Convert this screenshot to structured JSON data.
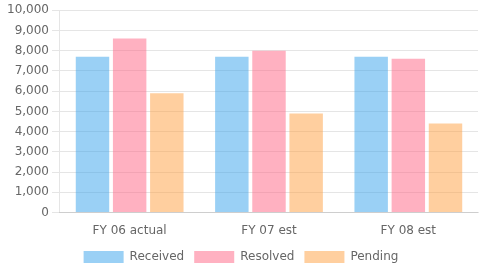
{
  "chart_data": {
    "type": "bar",
    "categories": [
      "FY 06 actual",
      "FY 07 est",
      "FY 08 est"
    ],
    "series": [
      {
        "name": "Received",
        "values": [
          7700,
          7700,
          7700
        ]
      },
      {
        "name": "Resolved",
        "values": [
          8600,
          8000,
          7600
        ]
      },
      {
        "name": "Pending",
        "values": [
          5900,
          4900,
          4400
        ]
      }
    ],
    "ylim": [
      0,
      10000
    ],
    "yticks": [
      0,
      {
        "value": 1000,
        "label": "1,000"
      },
      {
        "value": 2000,
        "label": "2,000"
      },
      {
        "value": 3000,
        "label": "3,000"
      },
      {
        "value": 4000,
        "label": "4,000"
      },
      {
        "value": 5000,
        "label": "5,000"
      },
      {
        "value": 6000,
        "label": "6,000"
      },
      {
        "value": 7000,
        "label": "7,000"
      },
      {
        "value": 8000,
        "label": "8,000"
      },
      {
        "value": 9000,
        "label": "9,000"
      },
      {
        "value": 10000,
        "label": "10,000"
      }
    ],
    "grid": true,
    "legend": "bottom"
  }
}
